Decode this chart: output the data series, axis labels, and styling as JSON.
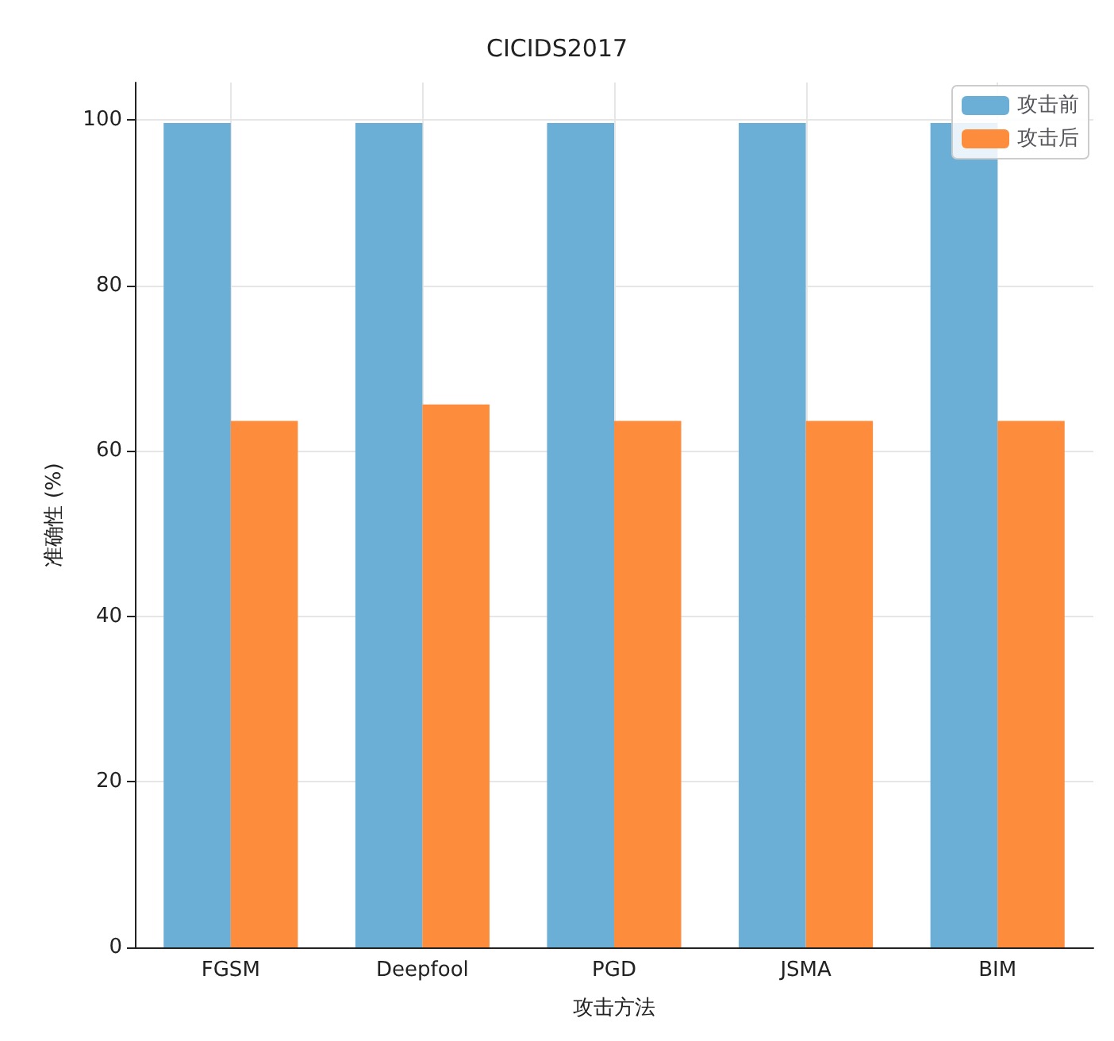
{
  "chart_data": {
    "type": "bar",
    "title": "CICIDS2017",
    "xlabel": "攻击方法",
    "ylabel": "准确性 (%)",
    "categories": [
      "FGSM",
      "Deepfool",
      "PGD",
      "JSMA",
      "BIM"
    ],
    "series": [
      {
        "name": "攻击前",
        "color": "#6baed6",
        "values": [
          99.6,
          99.6,
          99.6,
          99.6,
          99.6
        ]
      },
      {
        "name": "攻击后",
        "color": "#fd8d3c",
        "values": [
          63.6,
          65.6,
          63.6,
          63.6,
          63.6
        ]
      }
    ],
    "ylim": [
      0,
      104.5
    ],
    "yticks": [
      0,
      20,
      40,
      60,
      80,
      100
    ],
    "grid": true,
    "legend": "top right"
  }
}
